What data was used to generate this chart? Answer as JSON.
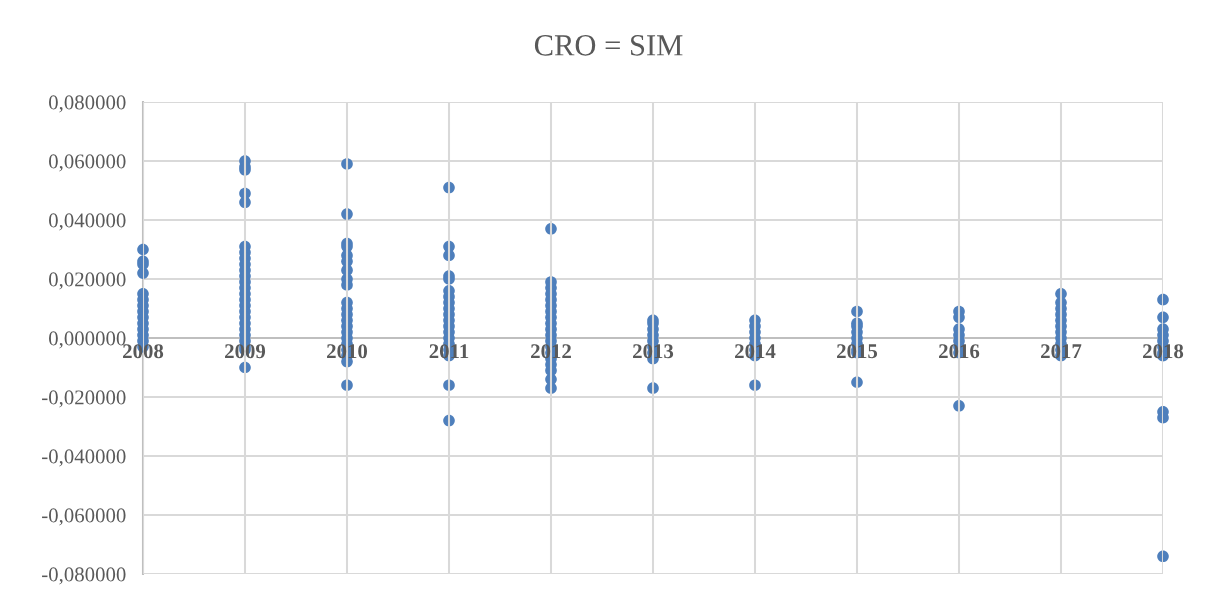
{
  "chart_data": {
    "type": "scatter",
    "title": "CRO = SIM",
    "series": [
      {
        "color": "#4e7fbc",
        "x": [
          2008,
          2008,
          2008,
          2008,
          2008,
          2008,
          2008,
          2008,
          2008,
          2008,
          2008,
          2008,
          2008,
          2008,
          2009,
          2009,
          2009,
          2009,
          2009,
          2009,
          2009,
          2009,
          2009,
          2009,
          2009,
          2009,
          2009,
          2009,
          2009,
          2009,
          2009,
          2009,
          2009,
          2009,
          2009,
          2009,
          2009,
          2009,
          2009,
          2010,
          2010,
          2010,
          2010,
          2010,
          2010,
          2010,
          2010,
          2010,
          2010,
          2010,
          2010,
          2010,
          2010,
          2010,
          2010,
          2010,
          2010,
          2010,
          2010,
          2010,
          2011,
          2011,
          2011,
          2011,
          2011,
          2011,
          2011,
          2011,
          2011,
          2011,
          2011,
          2011,
          2011,
          2011,
          2011,
          2011,
          2011,
          2011,
          2011,
          2012,
          2012,
          2012,
          2012,
          2012,
          2012,
          2012,
          2012,
          2012,
          2012,
          2012,
          2012,
          2012,
          2012,
          2012,
          2012,
          2012,
          2012,
          2012,
          2013,
          2013,
          2013,
          2013,
          2013,
          2013,
          2013,
          2013,
          2013,
          2014,
          2014,
          2014,
          2014,
          2014,
          2014,
          2014,
          2014,
          2015,
          2015,
          2015,
          2015,
          2015,
          2015,
          2015,
          2015,
          2015,
          2016,
          2016,
          2016,
          2016,
          2016,
          2016,
          2016,
          2016,
          2017,
          2017,
          2017,
          2017,
          2017,
          2017,
          2017,
          2017,
          2017,
          2017,
          2017,
          2018,
          2018,
          2018,
          2018,
          2018,
          2018,
          2018,
          2018,
          2018,
          2018,
          2018
        ],
        "values": [
          0.03,
          0.026,
          0.025,
          0.022,
          0.015,
          0.013,
          0.011,
          0.009,
          0.007,
          0.005,
          0.003,
          0.001,
          -0.001,
          -0.003,
          0.06,
          0.058,
          0.057,
          0.049,
          0.046,
          0.031,
          0.029,
          0.027,
          0.025,
          0.023,
          0.021,
          0.019,
          0.017,
          0.015,
          0.013,
          0.011,
          0.009,
          0.007,
          0.005,
          0.003,
          0.001,
          -0.001,
          -0.003,
          -0.004,
          -0.01,
          0.059,
          0.042,
          0.032,
          0.031,
          0.028,
          0.026,
          0.023,
          0.02,
          0.018,
          0.012,
          0.01,
          0.008,
          0.006,
          0.004,
          0.002,
          0.0,
          -0.002,
          -0.004,
          -0.006,
          -0.008,
          -0.016,
          0.051,
          0.031,
          0.028,
          0.021,
          0.02,
          0.016,
          0.014,
          0.012,
          0.01,
          0.008,
          0.006,
          0.004,
          0.002,
          0.0,
          -0.002,
          -0.004,
          -0.006,
          -0.016,
          -0.028,
          0.037,
          0.019,
          0.017,
          0.015,
          0.013,
          0.011,
          0.009,
          0.007,
          0.005,
          0.003,
          0.001,
          -0.001,
          -0.003,
          -0.005,
          -0.007,
          -0.009,
          -0.011,
          -0.014,
          -0.017,
          0.006,
          0.005,
          0.003,
          0.001,
          -0.001,
          -0.003,
          -0.005,
          -0.007,
          -0.017,
          0.006,
          0.004,
          0.002,
          0.0,
          -0.002,
          -0.004,
          -0.006,
          -0.016,
          0.009,
          0.005,
          0.004,
          0.002,
          0.0,
          -0.002,
          -0.004,
          -0.005,
          -0.015,
          0.009,
          0.007,
          0.003,
          0.001,
          -0.001,
          -0.003,
          -0.005,
          -0.023,
          0.015,
          0.012,
          0.01,
          0.008,
          0.006,
          0.004,
          0.002,
          0.0,
          -0.002,
          -0.004,
          -0.006,
          0.013,
          0.007,
          0.003,
          0.001,
          -0.001,
          -0.003,
          -0.005,
          -0.006,
          -0.025,
          -0.027,
          -0.074
        ]
      }
    ],
    "xlim": [
      2008,
      2018
    ],
    "xticks": [
      2008,
      2009,
      2010,
      2011,
      2012,
      2013,
      2014,
      2015,
      2016,
      2017,
      2018
    ],
    "ylim": [
      -0.08,
      0.08
    ],
    "yticks": [
      {
        "value": -0.08,
        "label": "-0,080000"
      },
      {
        "value": -0.06,
        "label": "-0,060000"
      },
      {
        "value": -0.04,
        "label": "-0,040000"
      },
      {
        "value": -0.02,
        "label": "-0,020000"
      },
      {
        "value": 0,
        "label": "0,000000"
      },
      {
        "value": 0.02,
        "label": "0,020000"
      },
      {
        "value": 0.04,
        "label": "0,040000"
      },
      {
        "value": 0.06,
        "label": "0,060000"
      },
      {
        "value": 0.08,
        "label": "0,080000"
      }
    ],
    "grid": true,
    "marker": "circle"
  }
}
